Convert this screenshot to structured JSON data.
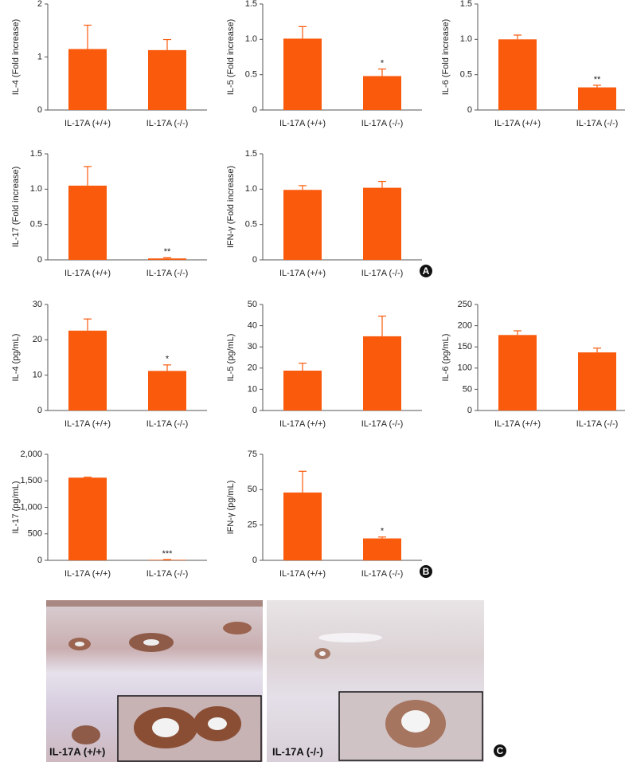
{
  "chart_data": [
    {
      "type": "bar",
      "ylabel": "IL-4 (Fold increase)",
      "categories": [
        "IL-17A (+/+)",
        "IL-17A (-/-)"
      ],
      "values": [
        1.15,
        1.13
      ],
      "errors": [
        0.45,
        0.2
      ],
      "color": "#f95a0c",
      "ylim": [
        0,
        2
      ],
      "yticks": [
        0,
        1,
        2
      ],
      "annotations": []
    },
    {
      "type": "bar",
      "ylabel": "IL-5 (Fold increase)",
      "categories": [
        "IL-17A (+/+)",
        "IL-17A (-/-)"
      ],
      "values": [
        1.01,
        0.48
      ],
      "errors": [
        0.17,
        0.1
      ],
      "color": "#f95a0c",
      "ylim": [
        0,
        1.5
      ],
      "yticks": [
        0,
        0.5,
        {
          "value": 1,
          "label": "1.0"
        },
        1.5
      ],
      "annotations": [
        {
          "index": 1,
          "text": "*"
        }
      ]
    },
    {
      "type": "bar",
      "ylabel": "IL-6 (Fold increase)",
      "categories": [
        "IL-17A (+/+)",
        "IL-17A (-/-)"
      ],
      "values": [
        1.0,
        0.32
      ],
      "errors": [
        0.06,
        0.03
      ],
      "color": "#f95a0c",
      "ylim": [
        0,
        1.5
      ],
      "yticks": [
        0,
        0.5,
        {
          "value": 1,
          "label": "1.0"
        },
        1.5
      ],
      "annotations": [
        {
          "index": 1,
          "text": "**"
        }
      ]
    },
    {
      "type": "bar",
      "ylabel": "IL-17 (Fold increase)",
      "categories": [
        "IL-17A (+/+)",
        "IL-17A (-/-)"
      ],
      "values": [
        1.05,
        0.02
      ],
      "errors": [
        0.27,
        0.01
      ],
      "color": "#f95a0c",
      "ylim": [
        0,
        1.5
      ],
      "yticks": [
        0,
        0.5,
        {
          "value": 1,
          "label": "1.0"
        },
        1.5
      ],
      "annotations": [
        {
          "index": 1,
          "text": "**"
        }
      ]
    },
    {
      "type": "bar",
      "ylabel": "IFN-γ (Fold increase)",
      "categories": [
        "IL-17A (+/+)",
        "IL-17A (-/-)"
      ],
      "values": [
        0.99,
        1.02
      ],
      "errors": [
        0.06,
        0.09
      ],
      "color": "#f95a0c",
      "ylim": [
        0,
        1.5
      ],
      "yticks": [
        0,
        0.5,
        {
          "value": 1,
          "label": "1.0"
        },
        1.5
      ],
      "annotations": []
    },
    {
      "type": "bar",
      "ylabel": "IL-4 (pg/mL)",
      "categories": [
        "IL-17A (+/+)",
        "IL-17A (-/-)"
      ],
      "values": [
        22.6,
        11.2
      ],
      "errors": [
        3.3,
        1.7
      ],
      "color": "#f95a0c",
      "ylim": [
        0,
        30
      ],
      "yticks": [
        0,
        10,
        20,
        30
      ],
      "annotations": [
        {
          "index": 1,
          "text": "*"
        }
      ]
    },
    {
      "type": "bar",
      "ylabel": "IL-5 (pg/mL)",
      "categories": [
        "IL-17A (+/+)",
        "IL-17A (-/-)"
      ],
      "values": [
        18.8,
        35
      ],
      "errors": [
        3.5,
        9.5
      ],
      "color": "#f95a0c",
      "ylim": [
        0,
        50
      ],
      "yticks": [
        0,
        10,
        20,
        30,
        40,
        50
      ],
      "annotations": []
    },
    {
      "type": "bar",
      "ylabel": "IL-6 (pg/mL)",
      "categories": [
        "IL-17A (+/+)",
        "IL-17A (-/-)"
      ],
      "values": [
        178,
        137
      ],
      "errors": [
        10,
        10
      ],
      "color": "#f95a0c",
      "ylim": [
        0,
        250
      ],
      "yticks": [
        0,
        50,
        100,
        150,
        200,
        250
      ],
      "annotations": []
    },
    {
      "type": "bar",
      "ylabel": "IL-17 (pg/mL)",
      "categories": [
        "IL-17A (+/+)",
        "IL-17A (-/-)"
      ],
      "values": [
        1560,
        10
      ],
      "errors": [
        10,
        5
      ],
      "color": "#f95a0c",
      "ylim": [
        0,
        2000
      ],
      "yticks": [
        0,
        500,
        {
          "value": 1000,
          "label": "1,000"
        },
        {
          "value": 1500,
          "label": "1,500"
        },
        {
          "value": 2000,
          "label": "2,000"
        }
      ],
      "annotations": [
        {
          "index": 1,
          "text": "***"
        }
      ]
    },
    {
      "type": "bar",
      "ylabel": "IFN-γ (pg/mL)",
      "categories": [
        "IL-17A (+/+)",
        "IL-17A (-/-)"
      ],
      "values": [
        48,
        15.5
      ],
      "errors": [
        15,
        1
      ],
      "color": "#f95a0c",
      "ylim": [
        0,
        75
      ],
      "yticks": [
        0,
        25,
        50,
        75
      ],
      "annotations": [
        {
          "index": 1,
          "text": "*"
        }
      ]
    }
  ],
  "panels": {
    "labels": [
      "A",
      "B",
      "C"
    ],
    "images": [
      {
        "label": "IL-17A (+/+)"
      },
      {
        "label": "IL-17A (-/-)"
      }
    ]
  }
}
